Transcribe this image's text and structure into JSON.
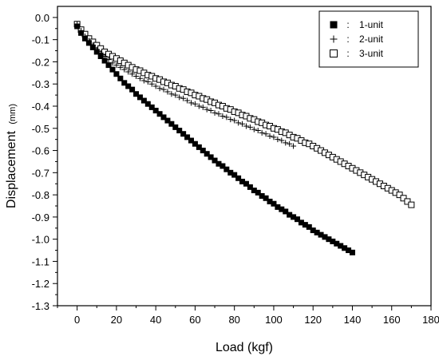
{
  "chart_data": {
    "type": "scatter",
    "title": "",
    "xlabel": "Load (kgf)",
    "ylabel": "Displacement",
    "ylabel_unit": "(mm)",
    "xlim": [
      -10,
      180
    ],
    "ylim": [
      -1.3,
      0.05
    ],
    "x_ticks": [
      0,
      20,
      40,
      60,
      80,
      100,
      120,
      140,
      160,
      180
    ],
    "x_tick_labels": [
      "0",
      "20",
      "40",
      "60",
      "80",
      "100",
      "120",
      "140",
      "160",
      "180"
    ],
    "y_ticks": [
      0.0,
      -0.1,
      -0.2,
      -0.3,
      -0.4,
      -0.5,
      -0.6,
      -0.7,
      -0.8,
      -0.9,
      -1.0,
      -1.1,
      -1.2,
      -1.3
    ],
    "y_tick_labels": [
      "0.0",
      "-0.1",
      "-0.2",
      "-0.3",
      "-0.4",
      "-0.5",
      "-0.6",
      "-0.7",
      "-0.8",
      "-0.9",
      "-1.0",
      "-1.1",
      "-1.2",
      "-1.3"
    ],
    "grid": false,
    "legend_position": "top-right",
    "legend_separator": ":",
    "series": [
      {
        "name": "1-unit",
        "marker": "filled-square",
        "color": "#000000",
        "x": [
          0,
          2,
          4,
          6,
          8,
          10,
          12,
          14,
          16,
          18,
          20,
          22,
          24,
          26,
          28,
          30,
          32,
          34,
          36,
          38,
          40,
          42,
          44,
          46,
          48,
          50,
          52,
          54,
          56,
          58,
          60,
          62,
          64,
          66,
          68,
          70,
          72,
          74,
          76,
          78,
          80,
          82,
          84,
          86,
          88,
          90,
          92,
          94,
          96,
          98,
          100,
          102,
          104,
          106,
          108,
          110,
          112,
          114,
          116,
          118,
          120,
          122,
          124,
          126,
          128,
          130,
          132,
          134,
          136,
          138,
          140
        ],
        "y": [
          -0.04,
          -0.07,
          -0.095,
          -0.115,
          -0.135,
          -0.155,
          -0.175,
          -0.195,
          -0.215,
          -0.235,
          -0.255,
          -0.275,
          -0.295,
          -0.31,
          -0.325,
          -0.345,
          -0.36,
          -0.375,
          -0.39,
          -0.405,
          -0.42,
          -0.435,
          -0.45,
          -0.465,
          -0.48,
          -0.495,
          -0.51,
          -0.525,
          -0.54,
          -0.555,
          -0.57,
          -0.585,
          -0.6,
          -0.615,
          -0.63,
          -0.645,
          -0.66,
          -0.67,
          -0.685,
          -0.7,
          -0.71,
          -0.725,
          -0.74,
          -0.75,
          -0.765,
          -0.78,
          -0.79,
          -0.805,
          -0.815,
          -0.83,
          -0.84,
          -0.855,
          -0.865,
          -0.875,
          -0.89,
          -0.9,
          -0.91,
          -0.925,
          -0.935,
          -0.945,
          -0.96,
          -0.97,
          -0.98,
          -0.99,
          -1.0,
          -1.01,
          -1.02,
          -1.03,
          -1.04,
          -1.05,
          -1.06
        ]
      },
      {
        "name": "2-unit",
        "marker": "plus",
        "color": "#000000",
        "x": [
          0,
          2,
          4,
          6,
          8,
          10,
          12,
          14,
          16,
          18,
          20,
          22,
          24,
          26,
          28,
          30,
          32,
          34,
          36,
          38,
          40,
          42,
          44,
          46,
          48,
          50,
          52,
          54,
          56,
          58,
          60,
          62,
          64,
          66,
          68,
          70,
          72,
          74,
          76,
          78,
          80,
          82,
          84,
          86,
          88,
          90,
          92,
          94,
          96,
          98,
          100,
          102,
          104,
          106,
          108,
          110
        ],
        "y": [
          -0.03,
          -0.06,
          -0.085,
          -0.105,
          -0.125,
          -0.145,
          -0.16,
          -0.175,
          -0.19,
          -0.205,
          -0.215,
          -0.225,
          -0.235,
          -0.245,
          -0.255,
          -0.265,
          -0.275,
          -0.285,
          -0.29,
          -0.3,
          -0.31,
          -0.32,
          -0.325,
          -0.335,
          -0.345,
          -0.35,
          -0.36,
          -0.365,
          -0.375,
          -0.385,
          -0.39,
          -0.4,
          -0.405,
          -0.415,
          -0.42,
          -0.43,
          -0.435,
          -0.445,
          -0.45,
          -0.46,
          -0.465,
          -0.475,
          -0.48,
          -0.49,
          -0.495,
          -0.505,
          -0.51,
          -0.52,
          -0.525,
          -0.535,
          -0.54,
          -0.55,
          -0.555,
          -0.565,
          -0.57,
          -0.58
        ]
      },
      {
        "name": "3-unit",
        "marker": "open-square",
        "color": "#000000",
        "x": [
          0,
          2,
          4,
          6,
          8,
          10,
          12,
          14,
          16,
          18,
          20,
          22,
          24,
          26,
          28,
          30,
          32,
          34,
          36,
          38,
          40,
          42,
          44,
          46,
          48,
          50,
          52,
          54,
          56,
          58,
          60,
          62,
          64,
          66,
          68,
          70,
          72,
          74,
          76,
          78,
          80,
          82,
          84,
          86,
          88,
          90,
          92,
          94,
          96,
          98,
          100,
          102,
          104,
          106,
          108,
          110,
          112,
          114,
          116,
          118,
          120,
          122,
          124,
          126,
          128,
          130,
          132,
          134,
          136,
          138,
          140,
          142,
          144,
          146,
          148,
          150,
          152,
          154,
          156,
          158,
          160,
          162,
          164,
          166,
          168,
          170
        ],
        "y": [
          -0.03,
          -0.055,
          -0.075,
          -0.095,
          -0.11,
          -0.125,
          -0.14,
          -0.155,
          -0.165,
          -0.175,
          -0.185,
          -0.195,
          -0.205,
          -0.215,
          -0.225,
          -0.235,
          -0.24,
          -0.25,
          -0.26,
          -0.265,
          -0.275,
          -0.28,
          -0.29,
          -0.295,
          -0.305,
          -0.31,
          -0.32,
          -0.325,
          -0.335,
          -0.34,
          -0.35,
          -0.355,
          -0.365,
          -0.37,
          -0.38,
          -0.385,
          -0.395,
          -0.4,
          -0.41,
          -0.415,
          -0.425,
          -0.43,
          -0.44,
          -0.445,
          -0.455,
          -0.46,
          -0.47,
          -0.475,
          -0.485,
          -0.49,
          -0.5,
          -0.505,
          -0.515,
          -0.52,
          -0.53,
          -0.54,
          -0.545,
          -0.555,
          -0.565,
          -0.57,
          -0.58,
          -0.59,
          -0.6,
          -0.61,
          -0.62,
          -0.63,
          -0.64,
          -0.65,
          -0.66,
          -0.67,
          -0.68,
          -0.69,
          -0.7,
          -0.71,
          -0.72,
          -0.73,
          -0.74,
          -0.75,
          -0.76,
          -0.77,
          -0.78,
          -0.79,
          -0.8,
          -0.815,
          -0.83,
          -0.845
        ]
      }
    ]
  }
}
